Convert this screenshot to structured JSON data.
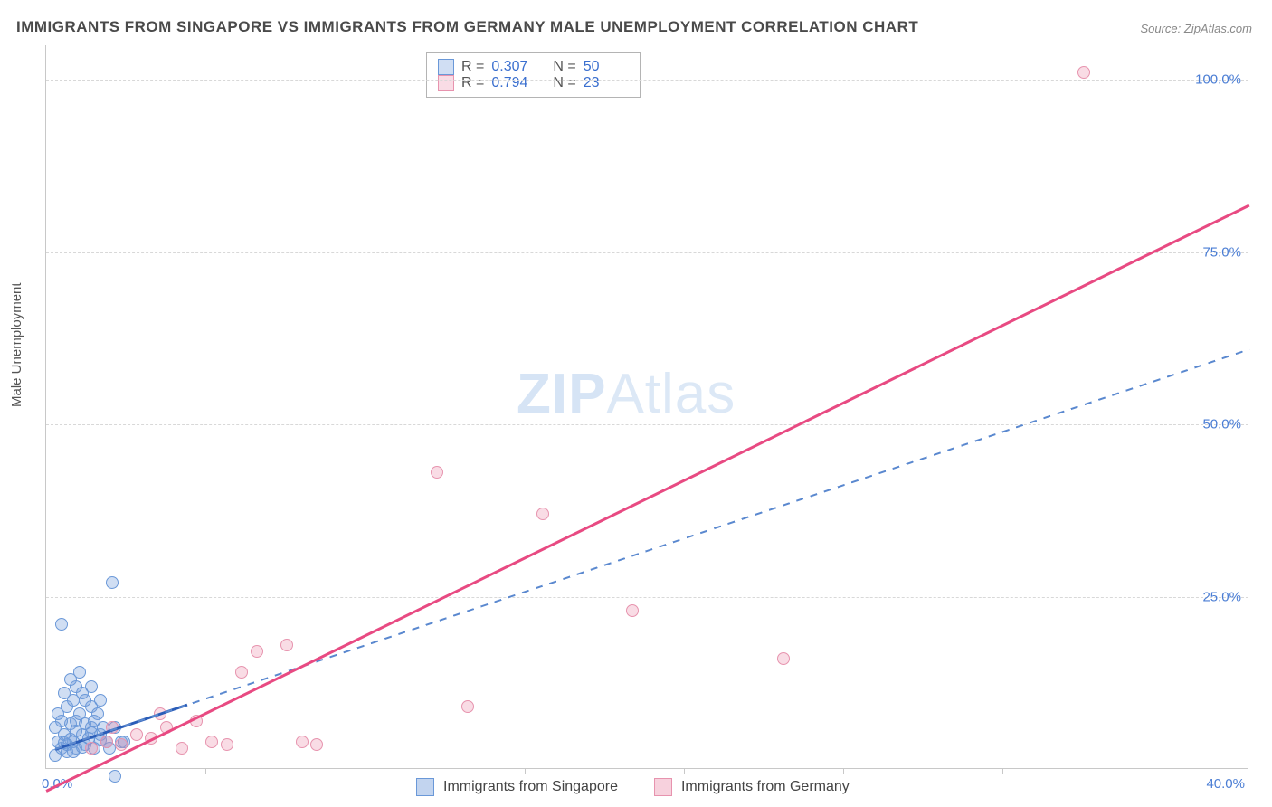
{
  "title": "IMMIGRANTS FROM SINGAPORE VS IMMIGRANTS FROM GERMANY MALE UNEMPLOYMENT CORRELATION CHART",
  "source_prefix": "Source: ",
  "source": "ZipAtlas.com",
  "ylabel": "Male Unemployment",
  "watermark_a": "ZIP",
  "watermark_b": "Atlas",
  "chart": {
    "type": "scatter",
    "xlim": [
      0,
      40
    ],
    "ylim": [
      0,
      105
    ],
    "x_origin_label": "0.0%",
    "x_max_label": "40.0%",
    "x_minor_ticks": [
      5.3,
      10.6,
      15.9,
      21.2,
      26.5,
      31.8,
      37.1
    ],
    "y_ticks": [
      25,
      50,
      75,
      100
    ],
    "y_tick_labels": [
      "25.0%",
      "50.0%",
      "75.0%",
      "100.0%"
    ],
    "grid_color": "#d8d8d8",
    "background_color": "#ffffff",
    "axis_color": "#c8c8c8",
    "tick_label_color": "#4a7dd4",
    "marker_radius": 7,
    "series": [
      {
        "name": "Immigrants from Singapore",
        "color_fill": "rgba(120,160,220,0.35)",
        "color_stroke": "#6a98d8",
        "line_color": "#2a5db8",
        "line_dash": "none",
        "line_width": 2.5,
        "dash_color": "#5a88cf",
        "dash_line": true,
        "R": "0.307",
        "N": "50",
        "points": [
          [
            0.3,
            2
          ],
          [
            0.5,
            3
          ],
          [
            0.7,
            2.5
          ],
          [
            0.9,
            4
          ],
          [
            1.0,
            3
          ],
          [
            1.2,
            5
          ],
          [
            1.3,
            3.5
          ],
          [
            1.5,
            6
          ],
          [
            0.6,
            5
          ],
          [
            0.8,
            6.5
          ],
          [
            1.0,
            7
          ],
          [
            1.1,
            8
          ],
          [
            1.4,
            4.5
          ],
          [
            1.6,
            3
          ],
          [
            0.4,
            4
          ],
          [
            0.5,
            7
          ],
          [
            0.7,
            9
          ],
          [
            0.9,
            10
          ],
          [
            1.2,
            11
          ],
          [
            1.5,
            9
          ],
          [
            1.8,
            5
          ],
          [
            2.0,
            4
          ],
          [
            2.3,
            6
          ],
          [
            0.3,
            6
          ],
          [
            0.6,
            11
          ],
          [
            1.0,
            12
          ],
          [
            1.3,
            10
          ],
          [
            1.7,
            8
          ],
          [
            2.1,
            3
          ],
          [
            2.5,
            4
          ],
          [
            0.8,
            13
          ],
          [
            1.1,
            14
          ],
          [
            0.5,
            21
          ],
          [
            2.2,
            27
          ],
          [
            1.5,
            12
          ],
          [
            1.8,
            10
          ],
          [
            0.4,
            8
          ],
          [
            0.7,
            3.5
          ],
          [
            0.9,
            2.5
          ],
          [
            1.0,
            5.5
          ],
          [
            1.3,
            6.5
          ],
          [
            1.6,
            7
          ],
          [
            1.9,
            6
          ],
          [
            2.3,
            -1
          ],
          [
            2.6,
            4
          ],
          [
            0.8,
            4.3
          ],
          [
            1.2,
            3.2
          ],
          [
            1.5,
            5.2
          ],
          [
            0.6,
            3.8
          ],
          [
            1.8,
            4.2
          ]
        ],
        "trend_solid": {
          "x1": 0.3,
          "y1": 3,
          "x2": 4.7,
          "y2": 9.5
        },
        "trend_dash": {
          "x1": 0.3,
          "y1": 3,
          "x2": 40,
          "y2": 61
        }
      },
      {
        "name": "Immigrants from Germany",
        "color_fill": "rgba(235,140,170,0.30)",
        "color_stroke": "#e793ae",
        "line_color": "#e84a82",
        "line_dash": "none",
        "line_width": 2.5,
        "R": "0.794",
        "N": "23",
        "points": [
          [
            1.5,
            3
          ],
          [
            2.0,
            4
          ],
          [
            2.5,
            3.5
          ],
          [
            3.0,
            5
          ],
          [
            3.5,
            4.5
          ],
          [
            4.0,
            6
          ],
          [
            4.5,
            3
          ],
          [
            5.0,
            7
          ],
          [
            5.5,
            4
          ],
          [
            6.0,
            3.5
          ],
          [
            7.0,
            17
          ],
          [
            8.0,
            18
          ],
          [
            8.5,
            4
          ],
          [
            9.0,
            3.5
          ],
          [
            13.0,
            43
          ],
          [
            14.0,
            9
          ],
          [
            16.5,
            37
          ],
          [
            19.5,
            23
          ],
          [
            24.5,
            16
          ],
          [
            34.5,
            101
          ],
          [
            6.5,
            14
          ],
          [
            3.8,
            8
          ],
          [
            2.2,
            6
          ]
        ],
        "trend_solid": {
          "x1": 0,
          "y1": -3,
          "x2": 40,
          "y2": 82
        }
      }
    ]
  },
  "stats_box": {
    "r_label": "R =",
    "n_label": "N ="
  },
  "legend": {
    "items": [
      {
        "label": "Immigrants from Singapore",
        "fill": "rgba(120,160,220,0.45)",
        "stroke": "#6a98d8"
      },
      {
        "label": "Immigrants from Germany",
        "fill": "rgba(235,140,170,0.40)",
        "stroke": "#e793ae"
      }
    ]
  }
}
